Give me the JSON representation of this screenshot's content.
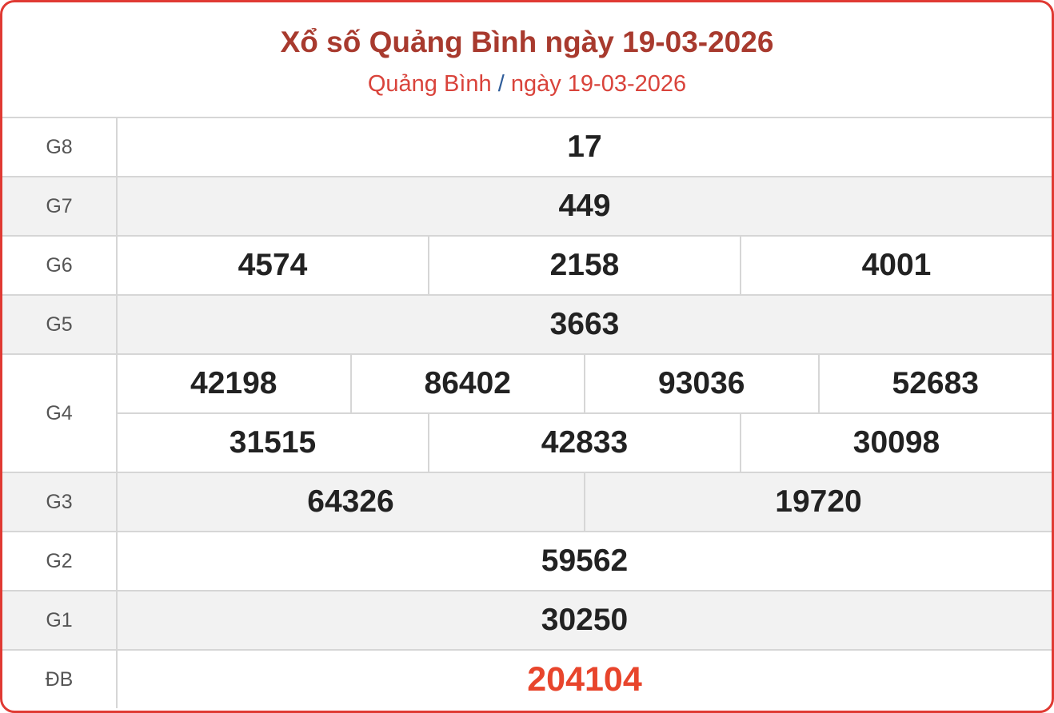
{
  "header": {
    "title": "Xổ số Quảng Bình ngày 19-03-2026",
    "breadcrumb_province": "Quảng Bình",
    "breadcrumb_separator": "/",
    "breadcrumb_date": "ngày 19-03-2026"
  },
  "colors": {
    "border": "#e03a33",
    "title": "#a83a2e",
    "special_prize": "#e8452c"
  },
  "prizes": [
    {
      "label": "G8",
      "rows": [
        [
          "17"
        ]
      ]
    },
    {
      "label": "G7",
      "rows": [
        [
          "449"
        ]
      ]
    },
    {
      "label": "G6",
      "rows": [
        [
          "4574",
          "2158",
          "4001"
        ]
      ]
    },
    {
      "label": "G5",
      "rows": [
        [
          "3663"
        ]
      ]
    },
    {
      "label": "G4",
      "rows": [
        [
          "42198",
          "86402",
          "93036",
          "52683"
        ],
        [
          "31515",
          "42833",
          "30098"
        ]
      ]
    },
    {
      "label": "G3",
      "rows": [
        [
          "64326",
          "19720"
        ]
      ]
    },
    {
      "label": "G2",
      "rows": [
        [
          "59562"
        ]
      ]
    },
    {
      "label": "G1",
      "rows": [
        [
          "30250"
        ]
      ]
    },
    {
      "label": "ĐB",
      "rows": [
        [
          "204104"
        ]
      ]
    }
  ]
}
